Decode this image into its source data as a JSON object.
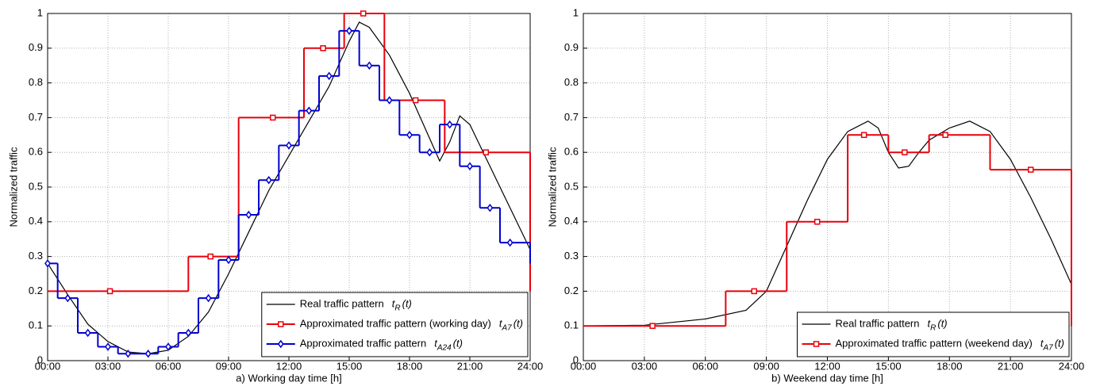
{
  "chart_data": [
    {
      "type": "line",
      "xlabel": "a) Working day time [h]",
      "ylabel": "Normalized traffic",
      "xlim": [
        0,
        24
      ],
      "ylim": [
        0,
        1
      ],
      "xticks": [
        {
          "value": 0,
          "label": "00:00"
        },
        {
          "value": 3,
          "label": "03:00"
        },
        {
          "value": 6,
          "label": "06:00"
        },
        {
          "value": 9,
          "label": "09:00"
        },
        {
          "value": 12,
          "label": "12:00"
        },
        {
          "value": 15,
          "label": "15:00"
        },
        {
          "value": 18,
          "label": "18:00"
        },
        {
          "value": 21,
          "label": "21:00"
        },
        {
          "value": 24,
          "label": "24:00"
        }
      ],
      "yticks": [
        0,
        0.1,
        0.2,
        0.3,
        0.4,
        0.5,
        0.6,
        0.7,
        0.8,
        0.9,
        1
      ],
      "grid": true,
      "legend": "lower right",
      "series": [
        {
          "name": "Real traffic pattern",
          "symbol": "t",
          "subscript": "R",
          "argument": "(t)",
          "color": "#000000",
          "style": "line",
          "x": [
            0,
            1,
            2,
            3,
            4,
            5,
            6,
            7,
            8,
            9,
            10,
            11,
            12,
            13,
            14,
            15,
            15.5,
            16,
            17,
            18,
            19,
            19.5,
            20,
            20.5,
            21,
            22,
            23,
            24
          ],
          "values": [
            0.28,
            0.19,
            0.105,
            0.055,
            0.025,
            0.02,
            0.03,
            0.07,
            0.14,
            0.25,
            0.37,
            0.49,
            0.59,
            0.69,
            0.79,
            0.92,
            0.975,
            0.96,
            0.88,
            0.77,
            0.64,
            0.575,
            0.63,
            0.705,
            0.68,
            0.56,
            0.44,
            0.32
          ]
        },
        {
          "name": "Approximated traffic pattern (working day)",
          "symbol": "t",
          "subscript": "A7",
          "argument": "(t)",
          "color": "#e8000b",
          "style": "step",
          "marker": "square",
          "bins": [
            0,
            7,
            9.5,
            12.75,
            14.75,
            16.75,
            19.75,
            24
          ],
          "x": [
            3.1,
            8.1,
            11.2,
            13.7,
            15.7,
            18.3,
            21.8
          ],
          "values": [
            0.2,
            0.3,
            0.7,
            0.9,
            1,
            0.75,
            0.6
          ]
        },
        {
          "name": "Approximated traffic pattern",
          "symbol": "t",
          "subscript": "A24",
          "argument": "(t)",
          "color": "#0000d0",
          "style": "step",
          "marker": "diamond",
          "bins": [
            0,
            0.5,
            1.5,
            2.5,
            3.5,
            4.5,
            5.5,
            6.5,
            7.5,
            8.5,
            9.5,
            10.5,
            11.5,
            12.5,
            13.5,
            14.5,
            15.5,
            16.5,
            17.5,
            18.5,
            19.5,
            20.5,
            21.5,
            22.5,
            24
          ],
          "x": [
            0,
            1,
            2,
            3,
            4,
            5,
            6,
            7,
            8,
            9,
            10,
            11,
            12,
            13,
            14,
            15,
            16,
            17,
            18,
            19,
            20,
            21,
            22,
            23
          ],
          "values": [
            0.28,
            0.18,
            0.08,
            0.04,
            0.02,
            0.02,
            0.04,
            0.08,
            0.18,
            0.29,
            0.42,
            0.52,
            0.62,
            0.72,
            0.82,
            0.95,
            0.85,
            0.75,
            0.65,
            0.6,
            0.68,
            0.56,
            0.44,
            0.34
          ]
        }
      ]
    },
    {
      "type": "line",
      "xlabel": "b) Weekend day time [h]",
      "ylabel": "Normalized traffic",
      "xlim": [
        0,
        24
      ],
      "ylim": [
        0,
        1
      ],
      "xticks": [
        {
          "value": 0,
          "label": "00:00"
        },
        {
          "value": 3,
          "label": "03:00"
        },
        {
          "value": 6,
          "label": "06:00"
        },
        {
          "value": 9,
          "label": "09:00"
        },
        {
          "value": 12,
          "label": "12:00"
        },
        {
          "value": 15,
          "label": "15:00"
        },
        {
          "value": 18,
          "label": "18:00"
        },
        {
          "value": 21,
          "label": "21:00"
        },
        {
          "value": 24,
          "label": "24:00"
        }
      ],
      "yticks": [
        0,
        0.1,
        0.2,
        0.3,
        0.4,
        0.5,
        0.6,
        0.7,
        0.8,
        0.9,
        1
      ],
      "grid": true,
      "legend": "lower right",
      "series": [
        {
          "name": "Real traffic pattern",
          "symbol": "t",
          "subscript": "R",
          "argument": "(t)",
          "color": "#000000",
          "style": "line",
          "x": [
            0,
            3,
            6,
            8,
            9,
            10,
            11,
            12,
            13,
            14,
            14.5,
            15,
            15.5,
            16,
            16.5,
            17,
            18,
            19,
            20,
            21,
            22,
            23,
            24
          ],
          "values": [
            0.1,
            0.102,
            0.12,
            0.145,
            0.2,
            0.33,
            0.46,
            0.58,
            0.66,
            0.69,
            0.67,
            0.6,
            0.555,
            0.56,
            0.6,
            0.635,
            0.67,
            0.69,
            0.66,
            0.58,
            0.47,
            0.35,
            0.22
          ]
        },
        {
          "name": "Approximated traffic pattern (weekend day)",
          "symbol": "t",
          "subscript": "A7",
          "argument": "(t)",
          "color": "#e8000b",
          "style": "step",
          "marker": "square",
          "bins": [
            0,
            7,
            10,
            13,
            15,
            17,
            20,
            24
          ],
          "x": [
            3.4,
            8.4,
            11.5,
            13.8,
            15.8,
            17.8,
            22
          ],
          "values": [
            0.1,
            0.2,
            0.4,
            0.65,
            0.6,
            0.65,
            0.55
          ]
        }
      ]
    }
  ]
}
